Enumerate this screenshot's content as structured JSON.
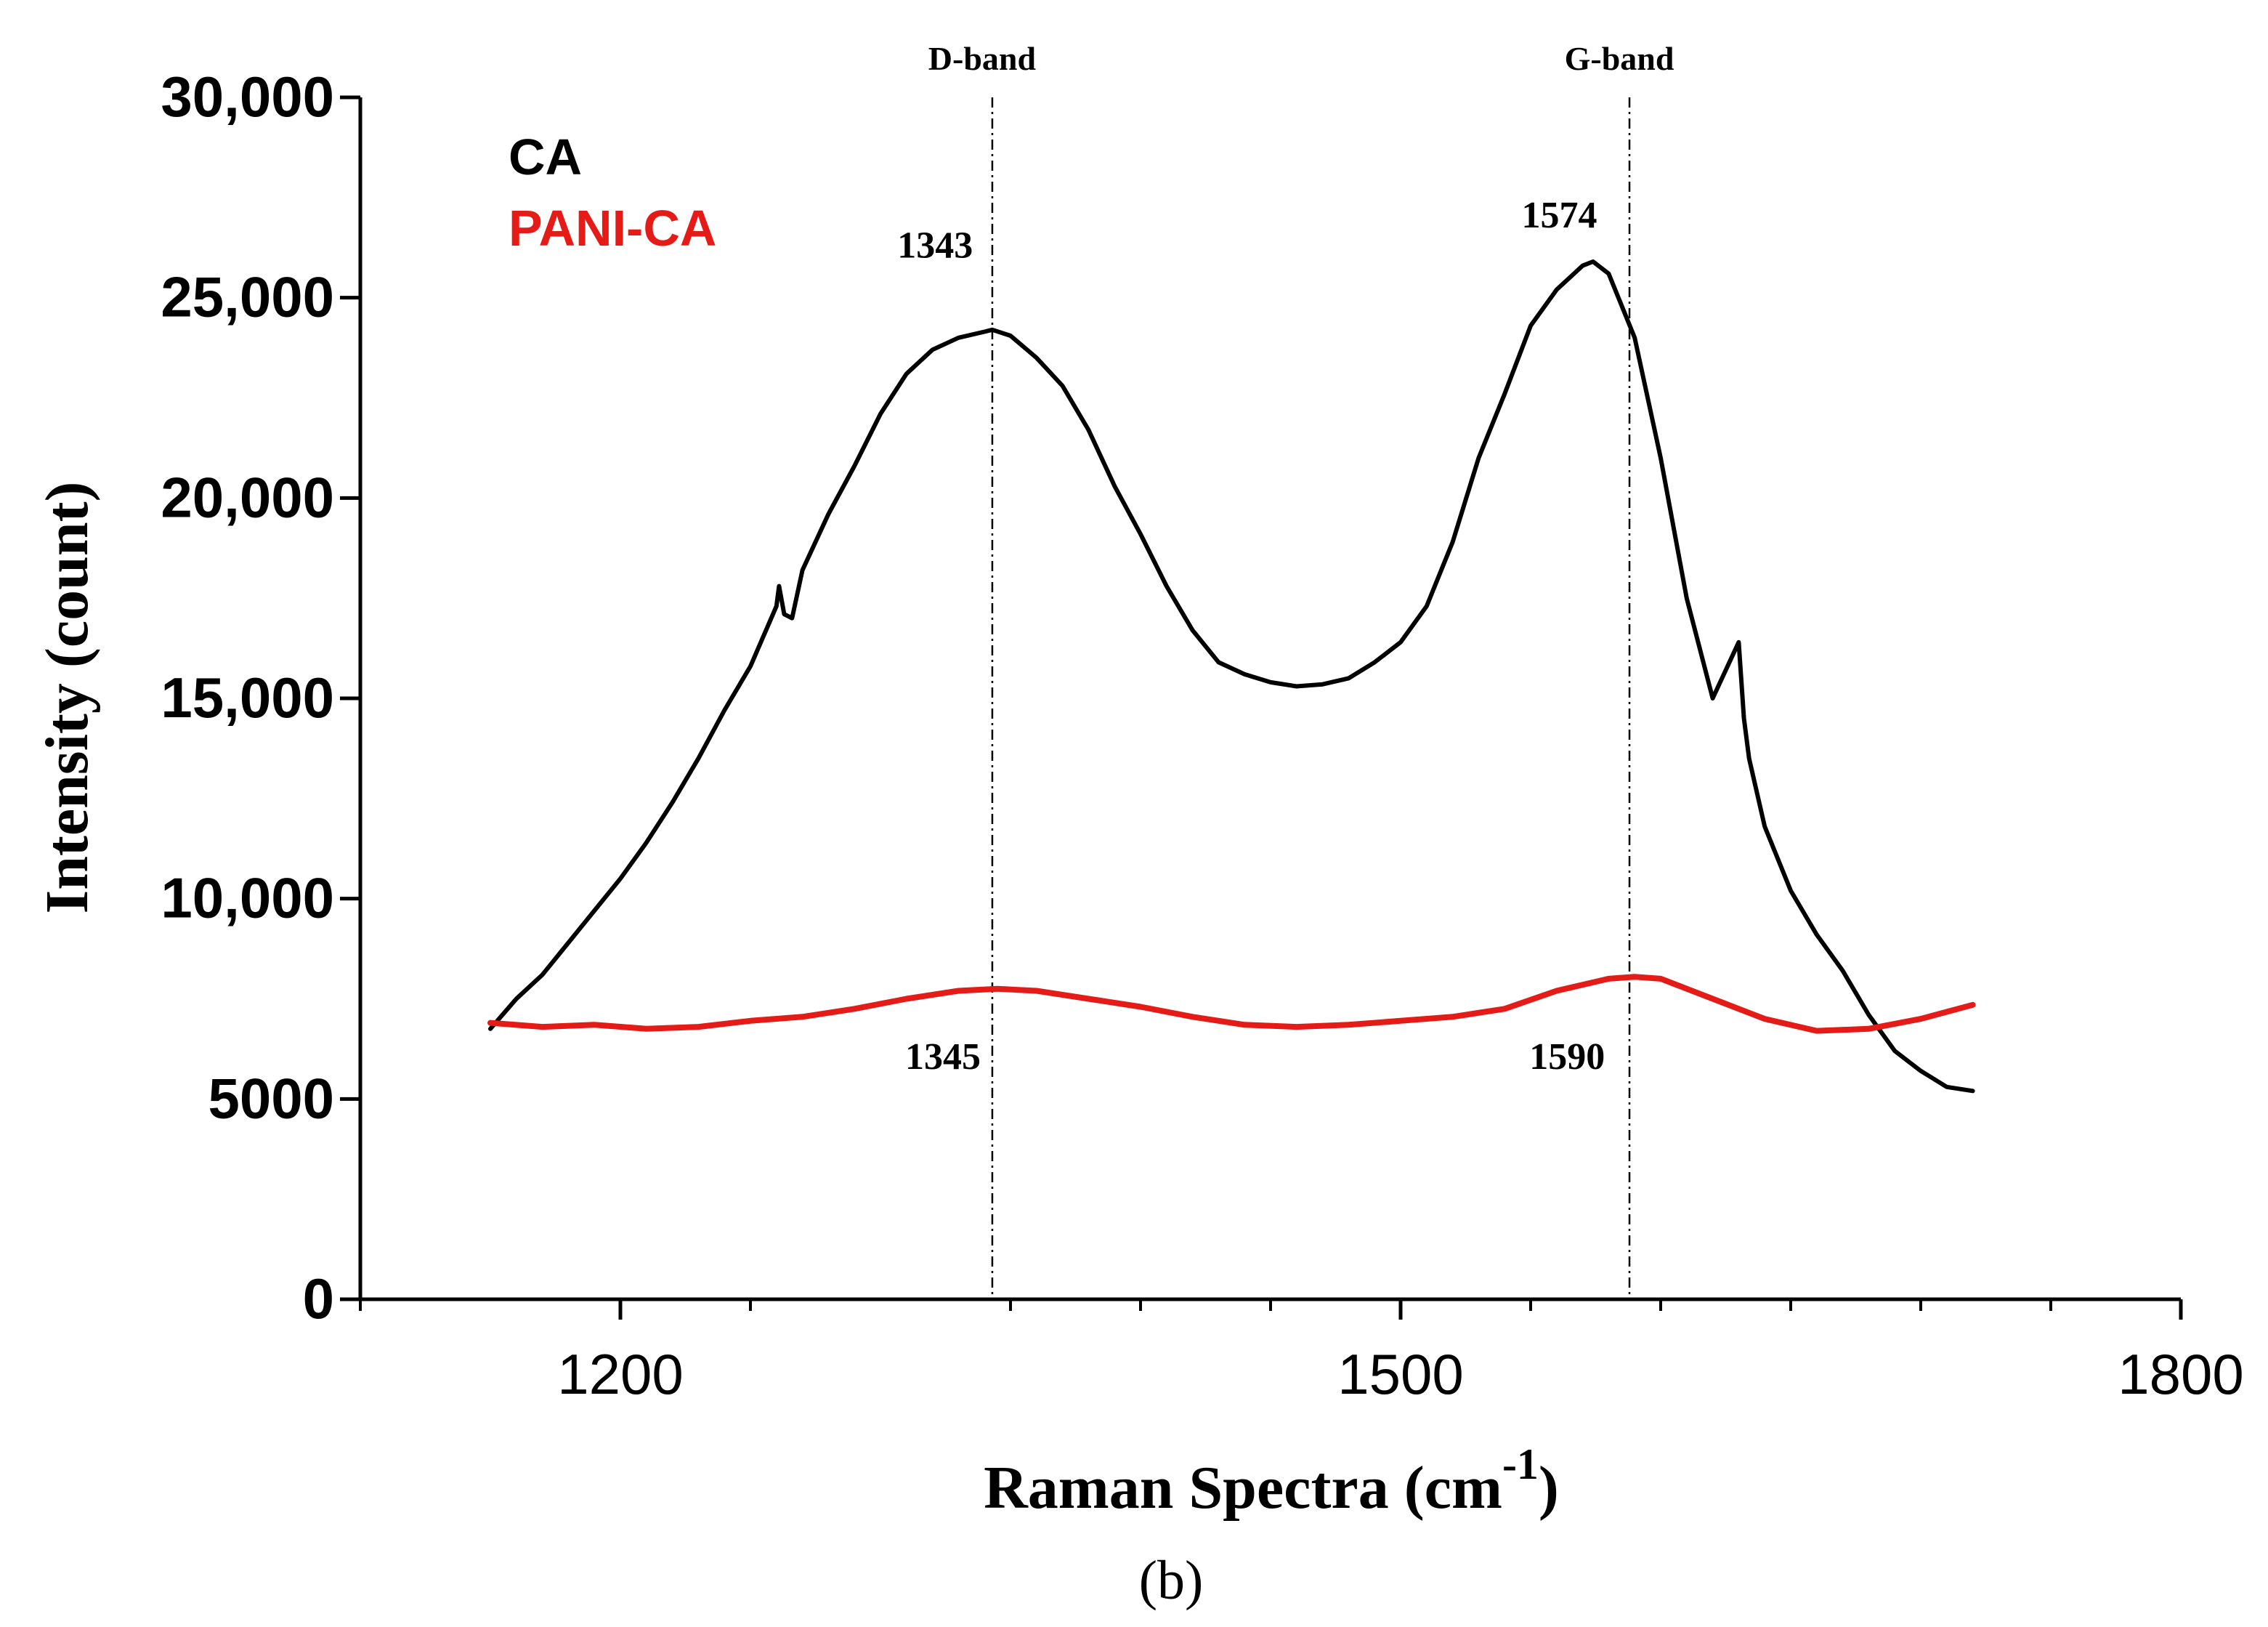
{
  "chart_data": {
    "type": "line",
    "title": "",
    "caption": "(b)",
    "xlabel": "Raman Spectra (cm",
    "xlabel_superscript": "-1",
    "xlabel_suffix": ")",
    "ylabel": "Intensity (count)",
    "xlim": [
      1100,
      1800
    ],
    "ylim": [
      0,
      30000
    ],
    "x_ticks": [
      {
        "value": 1200,
        "label": "1200"
      },
      {
        "value": 1500,
        "label": "1500"
      },
      {
        "value": 1800,
        "label": "1800"
      }
    ],
    "x_minor_ticks": [
      1100,
      1250,
      1350,
      1400,
      1450,
      1550,
      1600,
      1650,
      1700,
      1750
    ],
    "y_ticks": [
      {
        "value": 0,
        "label": "0"
      },
      {
        "value": 5000,
        "label": "5000"
      },
      {
        "value": 10000,
        "label": "10,000"
      },
      {
        "value": 15000,
        "label": "15,000"
      },
      {
        "value": 20000,
        "label": "20,000"
      },
      {
        "value": 25000,
        "label": "25,000"
      },
      {
        "value": 30000,
        "label": "30,000"
      }
    ],
    "legend": [
      {
        "name": "CA",
        "color": "#000000"
      },
      {
        "name": "PANI-CA",
        "color": "#e41b17"
      }
    ],
    "legend_position": "top-left",
    "reference_lines": [
      {
        "x": 1343,
        "label": "D-band"
      },
      {
        "x": 1588,
        "label": "G-band"
      }
    ],
    "annotations": [
      {
        "text": "1343",
        "x": 1335,
        "y": 26000
      },
      {
        "text": "1574",
        "x": 1575,
        "y": 26750
      },
      {
        "text": "1345",
        "x": 1338,
        "y": 5750
      },
      {
        "text": "1590",
        "x": 1578,
        "y": 5750
      }
    ],
    "series": [
      {
        "name": "CA",
        "color": "#000000",
        "x": [
          1150,
          1160,
          1170,
          1180,
          1190,
          1200,
          1210,
          1220,
          1230,
          1240,
          1250,
          1260,
          1261,
          1263,
          1266,
          1270,
          1280,
          1290,
          1300,
          1310,
          1320,
          1330,
          1340,
          1343,
          1350,
          1360,
          1370,
          1380,
          1390,
          1400,
          1410,
          1420,
          1430,
          1440,
          1450,
          1460,
          1470,
          1480,
          1490,
          1500,
          1510,
          1520,
          1530,
          1540,
          1550,
          1560,
          1570,
          1574,
          1580,
          1590,
          1600,
          1610,
          1620,
          1630,
          1632,
          1634,
          1640,
          1650,
          1660,
          1670,
          1680,
          1690,
          1700,
          1710,
          1720
        ],
        "y": [
          6750,
          7500,
          8100,
          8900,
          9700,
          10500,
          11400,
          12400,
          13500,
          14700,
          15800,
          17300,
          17800,
          17100,
          17000,
          18200,
          19600,
          20800,
          22100,
          23100,
          23700,
          24000,
          24150,
          24200,
          24050,
          23500,
          22800,
          21700,
          20300,
          19100,
          17800,
          16700,
          15900,
          15600,
          15400,
          15300,
          15350,
          15500,
          15900,
          16400,
          17300,
          18900,
          21000,
          22600,
          24300,
          25200,
          25800,
          25900,
          25600,
          24000,
          21000,
          17500,
          15000,
          16400,
          14500,
          13500,
          11800,
          10200,
          9100,
          8200,
          7100,
          6200,
          5700,
          5300,
          5200
        ]
      },
      {
        "name": "PANI-CA",
        "color": "#e41b17",
        "x": [
          1150,
          1170,
          1190,
          1210,
          1230,
          1250,
          1270,
          1290,
          1310,
          1330,
          1345,
          1360,
          1380,
          1400,
          1420,
          1440,
          1460,
          1480,
          1500,
          1520,
          1540,
          1560,
          1580,
          1590,
          1600,
          1620,
          1640,
          1660,
          1680,
          1700,
          1720
        ],
        "y": [
          6900,
          6800,
          6850,
          6750,
          6800,
          6950,
          7050,
          7250,
          7500,
          7700,
          7750,
          7700,
          7500,
          7300,
          7050,
          6850,
          6800,
          6850,
          6950,
          7050,
          7250,
          7700,
          8000,
          8050,
          8000,
          7500,
          7000,
          6700,
          6750,
          7000,
          7350
        ]
      }
    ]
  }
}
